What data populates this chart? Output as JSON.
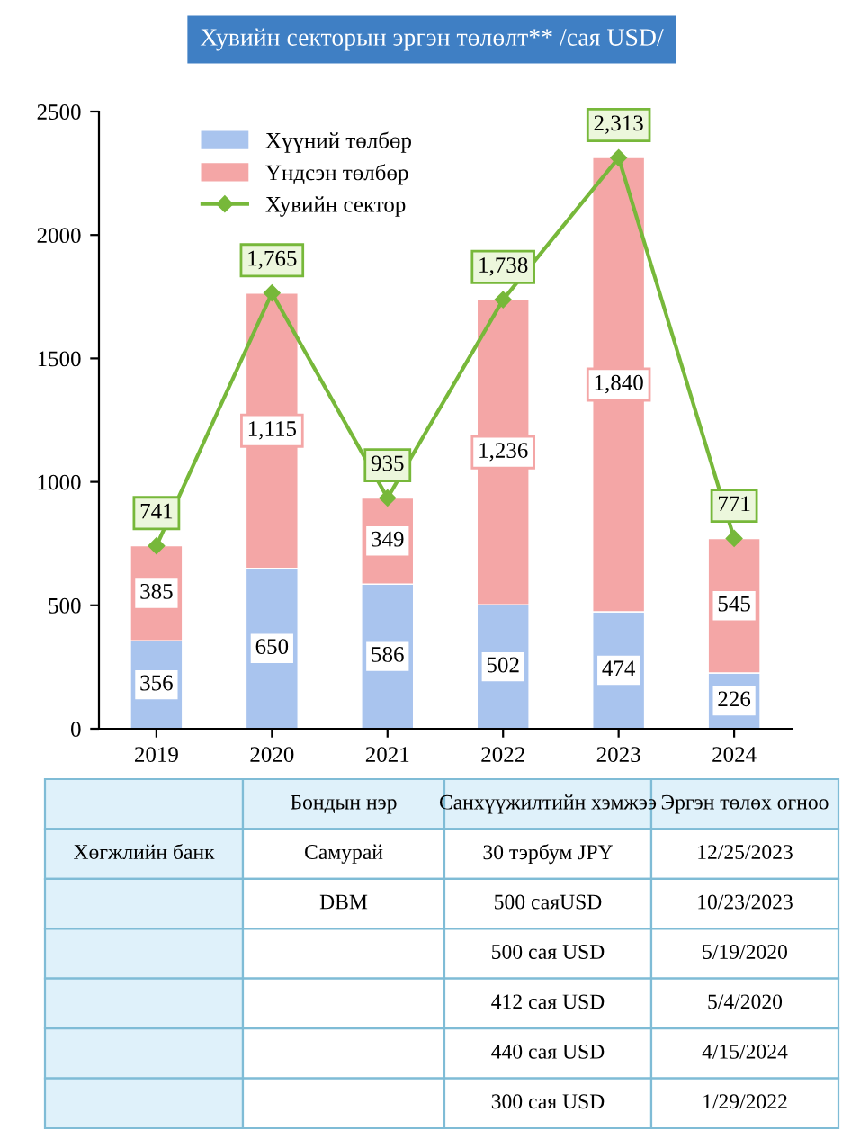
{
  "chart_data": [
    {
      "type": "bar",
      "title": "Хувийн секторын эргэн төлөлт** /сая USD/",
      "stacked": true,
      "legend": "top left",
      "grid": false,
      "categories": [
        "2019",
        "2020",
        "2021",
        "2022",
        "2023",
        "2024"
      ],
      "ylim": [
        0,
        2500
      ],
      "yticks": [
        0,
        500,
        1000,
        1500,
        2000,
        2500
      ],
      "series": [
        {
          "name": "Хүүний төлбөр",
          "color": "#a9c4ee",
          "values": [
            356,
            650,
            586,
            502,
            474,
            226
          ],
          "value_labels": [
            "356",
            "650",
            "586",
            "502",
            "474",
            "226"
          ]
        },
        {
          "name": "Үндсэн төлбөр",
          "color": "#f4a6a6",
          "values": [
            385,
            1115,
            349,
            1236,
            1840,
            545
          ],
          "value_labels": [
            "385",
            "1,115",
            "349",
            "1,236",
            "1,840",
            "545"
          ]
        },
        {
          "name": "Хувийн сектор",
          "type": "line",
          "color": "#77b83a",
          "marker": "diamond",
          "values": [
            741,
            1765,
            935,
            1738,
            2313,
            771
          ],
          "value_labels": [
            "741",
            "1,765",
            "935",
            "1,738",
            "2,313",
            "771"
          ]
        }
      ]
    },
    {
      "type": "other",
      "categories": [
        null,
        "Бондын нэр",
        "Санхүүжилтийн хэмжээ",
        "Эргэн төлөх огноо"
      ],
      "cell_labels": [
        [
          "Хөгжлийн банк",
          "Самурай",
          "30 тэрбум JPY",
          "12/25/2023"
        ],
        [
          null,
          "DBM",
          "500 саяUSD",
          "10/23/2023"
        ],
        [
          null,
          null,
          "500 сая USD",
          "5/19/2020"
        ],
        [
          null,
          null,
          "412 сая USD",
          "5/4/2020"
        ],
        [
          null,
          null,
          "440 сая USD",
          "4/15/2024"
        ],
        [
          null,
          null,
          "300 сая USD",
          "1/29/2022"
        ]
      ]
    }
  ]
}
